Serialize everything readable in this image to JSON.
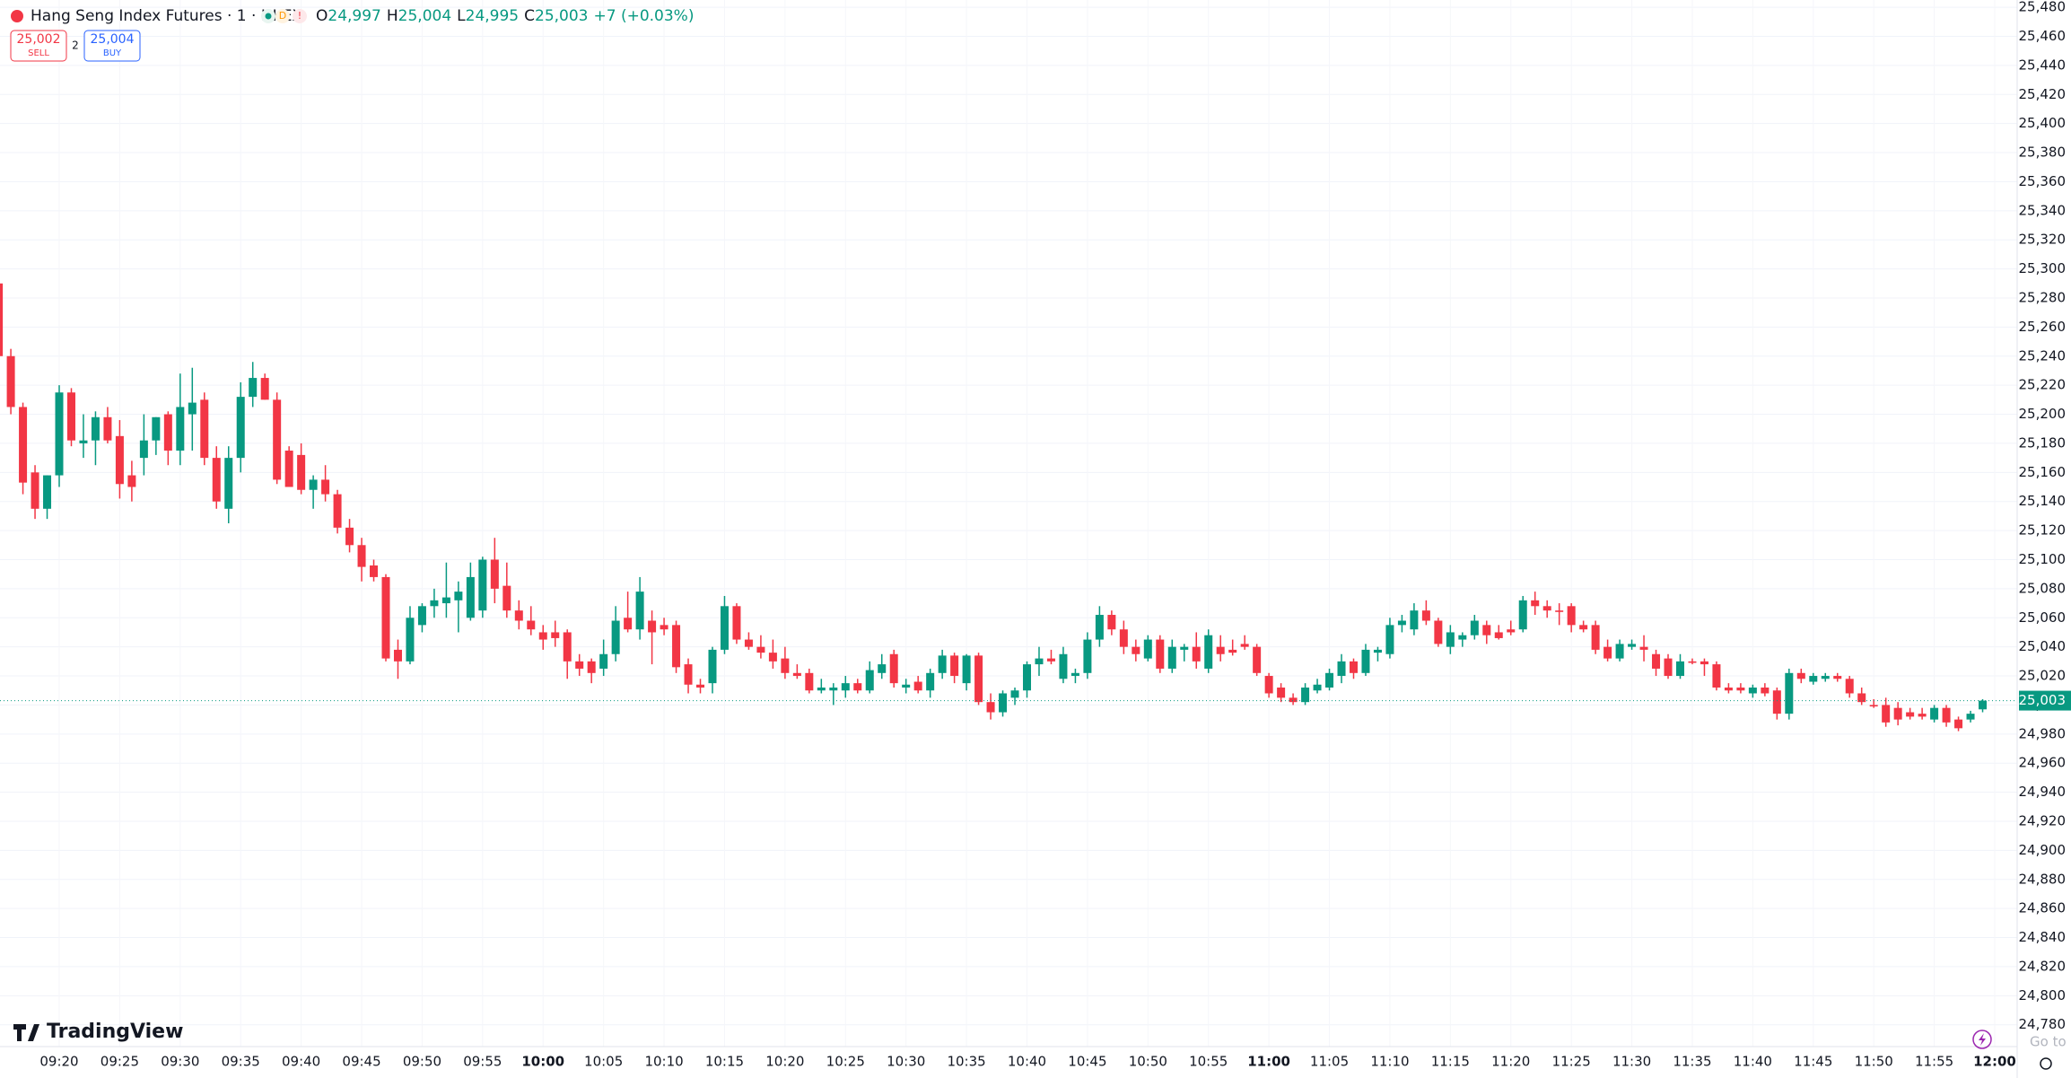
{
  "header": {
    "title": "Hang Seng Index Futures · 1 · HKEX",
    "badges": [
      "D",
      "!"
    ],
    "ohlc": [
      {
        "label": "O",
        "value": "24,997"
      },
      {
        "label": "H",
        "value": "25,004"
      },
      {
        "label": "L",
        "value": "24,995"
      },
      {
        "label": "C",
        "value": "25,003"
      }
    ],
    "change": "+7 (+0.03%)"
  },
  "trade": {
    "sell_price": "25,002",
    "sell": "SELL",
    "spread": "2",
    "buy_price": "25,004",
    "buy": "BUY"
  },
  "brand": "TradingView",
  "overlay": "Go to S",
  "chart_data": {
    "type": "candlestick",
    "up_color": "#089981",
    "down_color": "#f23645",
    "grid": true,
    "x": [
      "09:15",
      "09:16",
      "09:17",
      "09:18",
      "09:19",
      "09:20",
      "09:21",
      "09:22",
      "09:23",
      "09:24",
      "09:25",
      "09:26",
      "09:27",
      "09:28",
      "09:29",
      "09:30",
      "09:31",
      "09:32",
      "09:33",
      "09:34",
      "09:35",
      "09:36",
      "09:37",
      "09:38",
      "09:39",
      "09:40",
      "09:41",
      "09:42",
      "09:43",
      "09:44",
      "09:45",
      "09:46",
      "09:47",
      "09:48",
      "09:49",
      "09:50",
      "09:51",
      "09:52",
      "09:53",
      "09:54",
      "09:55",
      "09:56",
      "09:57",
      "09:58",
      "09:59",
      "10:00",
      "10:01",
      "10:02",
      "10:03",
      "10:04",
      "10:05",
      "10:06",
      "10:07",
      "10:08",
      "10:09",
      "10:10",
      "10:11",
      "10:12",
      "10:13",
      "10:14",
      "10:15",
      "10:16",
      "10:17",
      "10:18",
      "10:19",
      "10:20",
      "10:21",
      "10:22",
      "10:23",
      "10:24",
      "10:25",
      "10:26",
      "10:27",
      "10:28",
      "10:29",
      "10:30",
      "10:31",
      "10:32",
      "10:33",
      "10:34",
      "10:35",
      "10:36",
      "10:37",
      "10:38",
      "10:39",
      "10:40",
      "10:41",
      "10:42",
      "10:43",
      "10:44",
      "10:45",
      "10:46",
      "10:47",
      "10:48",
      "10:49",
      "10:50",
      "10:51",
      "10:52",
      "10:53",
      "10:54",
      "10:55",
      "10:56",
      "10:57",
      "10:58",
      "10:59",
      "11:00",
      "11:01",
      "11:02",
      "11:03",
      "11:04",
      "11:05",
      "11:06",
      "11:07",
      "11:08",
      "11:09",
      "11:10",
      "11:11",
      "11:12",
      "11:13",
      "11:14",
      "11:15",
      "11:16",
      "11:17",
      "11:18",
      "11:19",
      "11:20",
      "11:21",
      "11:22",
      "11:23",
      "11:24",
      "11:25",
      "11:26",
      "11:27",
      "11:28",
      "11:29",
      "11:30",
      "11:31",
      "11:32",
      "11:33",
      "11:34",
      "11:35",
      "11:36",
      "11:37",
      "11:38",
      "11:39",
      "11:40",
      "11:41",
      "11:42",
      "11:43",
      "11:44",
      "11:45",
      "11:46",
      "11:47",
      "11:48",
      "11:49",
      "11:50",
      "11:51",
      "11:52",
      "11:53",
      "11:54",
      "11:55",
      "11:56",
      "11:57",
      "11:58",
      "11:59"
    ],
    "open": [
      25290,
      25240,
      25205,
      25160,
      25135,
      25158,
      25215,
      25180,
      25182,
      25198,
      25185,
      25158,
      25170,
      25182,
      25200,
      25175,
      25200,
      25210,
      25170,
      25135,
      25170,
      25212,
      25225,
      25210,
      25175,
      25172,
      25148,
      25155,
      25145,
      25122,
      25110,
      25096,
      25088,
      25038,
      25030,
      25055,
      25068,
      25070,
      25072,
      25060,
      25065,
      25100,
      25082,
      25065,
      25058,
      25050,
      25050,
      25050,
      25030,
      25030,
      25025,
      25035,
      25060,
      25052,
      25058,
      25055,
      25055,
      25028,
      25014,
      25015,
      25038,
      25068,
      25045,
      25040,
      25036,
      25032,
      25022,
      25022,
      25010,
      25010,
      25010,
      25015,
      25010,
      25022,
      25035,
      25012,
      25016,
      25010,
      25022,
      25034,
      25015,
      25034,
      25002,
      24995,
      25005,
      25010,
      25028,
      25032,
      25018,
      25020,
      25022,
      25045,
      25062,
      25052,
      25040,
      25032,
      25045,
      25025,
      25038,
      25040,
      25025,
      25040,
      25038,
      25042,
      25040,
      25020,
      25012,
      25005,
      25002,
      25010,
      25012,
      25020,
      25030,
      25022,
      25036,
      25035,
      25055,
      25052,
      25065,
      25058,
      25040,
      25045,
      25048,
      25055,
      25050,
      25052,
      25052,
      25072,
      25068,
      25065,
      25068,
      25055,
      25055,
      25040,
      25032,
      25040,
      25040,
      25035,
      25032,
      25020,
      25030,
      25030,
      25028,
      25012,
      25012,
      25008,
      25012,
      25010,
      24994,
      25022,
      25016,
      25018,
      25020,
      25018,
      25008,
      25000,
      25000,
      24998,
      24995,
      24994,
      24990,
      24998,
      24990,
      24990,
      24997
    ],
    "high": [
      25292,
      25245,
      25208,
      25165,
      25158,
      25220,
      25218,
      25200,
      25202,
      25205,
      25196,
      25168,
      25200,
      25198,
      25202,
      25228,
      25232,
      25215,
      25178,
      25178,
      25222,
      25236,
      25228,
      25215,
      25178,
      25180,
      25158,
      25165,
      25148,
      25128,
      25115,
      25100,
      25090,
      25045,
      25068,
      25070,
      25080,
      25098,
      25085,
      25098,
      25102,
      25115,
      25098,
      25072,
      25068,
      25055,
      25058,
      25052,
      25035,
      25032,
      25045,
      25068,
      25078,
      25088,
      25065,
      25060,
      25058,
      25032,
      25018,
      25040,
      25075,
      25070,
      25050,
      25048,
      25045,
      25040,
      25028,
      25025,
      25018,
      25015,
      25020,
      25018,
      25030,
      25035,
      25038,
      25018,
      25020,
      25025,
      25038,
      25036,
      25035,
      25036,
      25008,
      25010,
      25012,
      25030,
      25040,
      25038,
      25040,
      25025,
      25050,
      25068,
      25065,
      25058,
      25045,
      25048,
      25048,
      25045,
      25042,
      25050,
      25052,
      25048,
      25045,
      25048,
      25042,
      25022,
      25015,
      25008,
      25015,
      25018,
      25025,
      25035,
      25032,
      25042,
      25040,
      25060,
      25062,
      25070,
      25072,
      25060,
      25055,
      25050,
      25062,
      25058,
      25055,
      25058,
      25075,
      25078,
      25072,
      25070,
      25070,
      25058,
      25058,
      25045,
      25045,
      25045,
      25048,
      25038,
      25035,
      25035,
      25032,
      25032,
      25030,
      25015,
      25015,
      25014,
      25015,
      25012,
      25025,
      25025,
      25022,
      25022,
      25022,
      25020,
      25012,
      25004,
      25005,
      25002,
      24998,
      24998,
      25000,
      25000,
      24992,
      24996,
      25004
    ],
    "low": [
      25236,
      25200,
      25145,
      25128,
      25128,
      25150,
      25178,
      25170,
      25165,
      25180,
      25142,
      25140,
      25158,
      25172,
      25165,
      25165,
      25175,
      25165,
      25135,
      25125,
      25160,
      25205,
      25210,
      25152,
      25150,
      25145,
      25135,
      25140,
      25118,
      25105,
      25085,
      25085,
      25030,
      25018,
      25028,
      25050,
      25060,
      25060,
      25050,
      25058,
      25060,
      25070,
      25060,
      25052,
      25048,
      25038,
      25040,
      25018,
      25020,
      25015,
      25020,
      25030,
      25050,
      25045,
      25028,
      25048,
      25022,
      25008,
      25008,
      25008,
      25035,
      25042,
      25038,
      25032,
      25025,
      25018,
      25018,
      25008,
      25008,
      25000,
      25005,
      25008,
      25008,
      25018,
      25012,
      25008,
      25008,
      25005,
      25018,
      25015,
      25010,
      25000,
      24990,
      24992,
      25000,
      25005,
      25020,
      25028,
      25015,
      25015,
      25018,
      25040,
      25048,
      25035,
      25030,
      25030,
      25022,
      25022,
      25030,
      25025,
      25022,
      25030,
      25034,
      25038,
      25020,
      25005,
      25002,
      25000,
      25000,
      25008,
      25010,
      25015,
      25018,
      25020,
      25030,
      25032,
      25050,
      25048,
      25055,
      25040,
      25035,
      25040,
      25045,
      25042,
      25045,
      25048,
      25050,
      25062,
      25060,
      25055,
      25050,
      25050,
      25035,
      25030,
      25030,
      25038,
      25030,
      25020,
      25018,
      25018,
      25028,
      25020,
      25010,
      25008,
      25008,
      25005,
      25006,
      24990,
      24990,
      25015,
      25014,
      25016,
      25016,
      25005,
      25000,
      24998,
      24985,
      24986,
      24990,
      24990,
      24988,
      24985,
      24982,
      24988,
      24995
    ],
    "close": [
      25240,
      25205,
      25153,
      25135,
      25158,
      25215,
      25182,
      25182,
      25198,
      25182,
      25152,
      25150,
      25182,
      25198,
      25175,
      25205,
      25208,
      25170,
      25140,
      25170,
      25212,
      25225,
      25210,
      25155,
      25150,
      25148,
      25155,
      25145,
      25122,
      25110,
      25095,
      25088,
      25032,
      25030,
      25060,
      25068,
      25072,
      25074,
      25078,
      25088,
      25100,
      25080,
      25065,
      25058,
      25052,
      25045,
      25046,
      25030,
      25025,
      25022,
      25035,
      25058,
      25052,
      25078,
      25050,
      25052,
      25026,
      25014,
      25012,
      25038,
      25068,
      25045,
      25040,
      25036,
      25030,
      25022,
      25020,
      25010,
      25012,
      25012,
      25015,
      25010,
      25024,
      25028,
      25015,
      25014,
      25010,
      25022,
      25034,
      25020,
      25034,
      25002,
      24995,
      25008,
      25010,
      25028,
      25032,
      25030,
      25035,
      25022,
      25045,
      25062,
      25052,
      25040,
      25035,
      25045,
      25025,
      25040,
      25040,
      25030,
      25048,
      25035,
      25036,
      25040,
      25022,
      25008,
      25005,
      25002,
      25012,
      25014,
      25022,
      25030,
      25022,
      25038,
      25038,
      25055,
      25058,
      25065,
      25058,
      25042,
      25050,
      25048,
      25058,
      25048,
      25046,
      25050,
      25072,
      25068,
      25065,
      25064,
      25055,
      25052,
      25038,
      25032,
      25042,
      25042,
      25038,
      25025,
      25020,
      25030,
      25029,
      25028,
      25012,
      25010,
      25010,
      25012,
      25008,
      24994,
      25022,
      25018,
      25020,
      25020,
      25018,
      25008,
      25002,
      24999,
      24988,
      24990,
      24992,
      24992,
      24998,
      24988,
      24984,
      24994,
      25003
    ],
    "xlim": [
      "09:15",
      "12:00"
    ],
    "xticks": [
      "09:20",
      "09:25",
      "09:30",
      "09:35",
      "09:40",
      "09:45",
      "09:50",
      "09:55",
      "10:00",
      "10:05",
      "10:10",
      "10:15",
      "10:20",
      "10:25",
      "10:30",
      "10:35",
      "10:40",
      "10:45",
      "10:50",
      "10:55",
      "11:00",
      "11:05",
      "11:10",
      "11:15",
      "11:20",
      "11:25",
      "11:30",
      "11:35",
      "11:40",
      "11:45",
      "11:50",
      "11:55",
      "12:00"
    ],
    "ylim": [
      24765,
      25485
    ],
    "yticks": [
      {
        "value": 24780,
        "label": "24,780"
      },
      {
        "value": 24800,
        "label": "24,800"
      },
      {
        "value": 24820,
        "label": "24,820"
      },
      {
        "value": 24840,
        "label": "24,840"
      },
      {
        "value": 24860,
        "label": "24,860"
      },
      {
        "value": 24880,
        "label": "24,880"
      },
      {
        "value": 24900,
        "label": "24,900"
      },
      {
        "value": 24920,
        "label": "24,920"
      },
      {
        "value": 24940,
        "label": "24,940"
      },
      {
        "value": 24960,
        "label": "24,960"
      },
      {
        "value": 24980,
        "label": "24,980"
      },
      {
        "value": 25000,
        "label": "25,000"
      },
      {
        "value": 25020,
        "label": "25,020"
      },
      {
        "value": 25040,
        "label": "25,040"
      },
      {
        "value": 25060,
        "label": "25,060"
      },
      {
        "value": 25080,
        "label": "25,080"
      },
      {
        "value": 25100,
        "label": "25,100"
      },
      {
        "value": 25120,
        "label": "25,120"
      },
      {
        "value": 25140,
        "label": "25,140"
      },
      {
        "value": 25160,
        "label": "25,160"
      },
      {
        "value": 25180,
        "label": "25,180"
      },
      {
        "value": 25200,
        "label": "25,200"
      },
      {
        "value": 25220,
        "label": "25,220"
      },
      {
        "value": 25240,
        "label": "25,240"
      },
      {
        "value": 25260,
        "label": "25,260"
      },
      {
        "value": 25280,
        "label": "25,280"
      },
      {
        "value": 25300,
        "label": "25,300"
      },
      {
        "value": 25320,
        "label": "25,320"
      },
      {
        "value": 25340,
        "label": "25,340"
      },
      {
        "value": 25360,
        "label": "25,360"
      },
      {
        "value": 25380,
        "label": "25,380"
      },
      {
        "value": 25400,
        "label": "25,400"
      },
      {
        "value": 25420,
        "label": "25,420"
      },
      {
        "value": 25440,
        "label": "25,440"
      },
      {
        "value": 25460,
        "label": "25,460"
      },
      {
        "value": 25480,
        "label": "25,480"
      }
    ],
    "last_price": {
      "value": 25003,
      "label": "25,003"
    }
  }
}
